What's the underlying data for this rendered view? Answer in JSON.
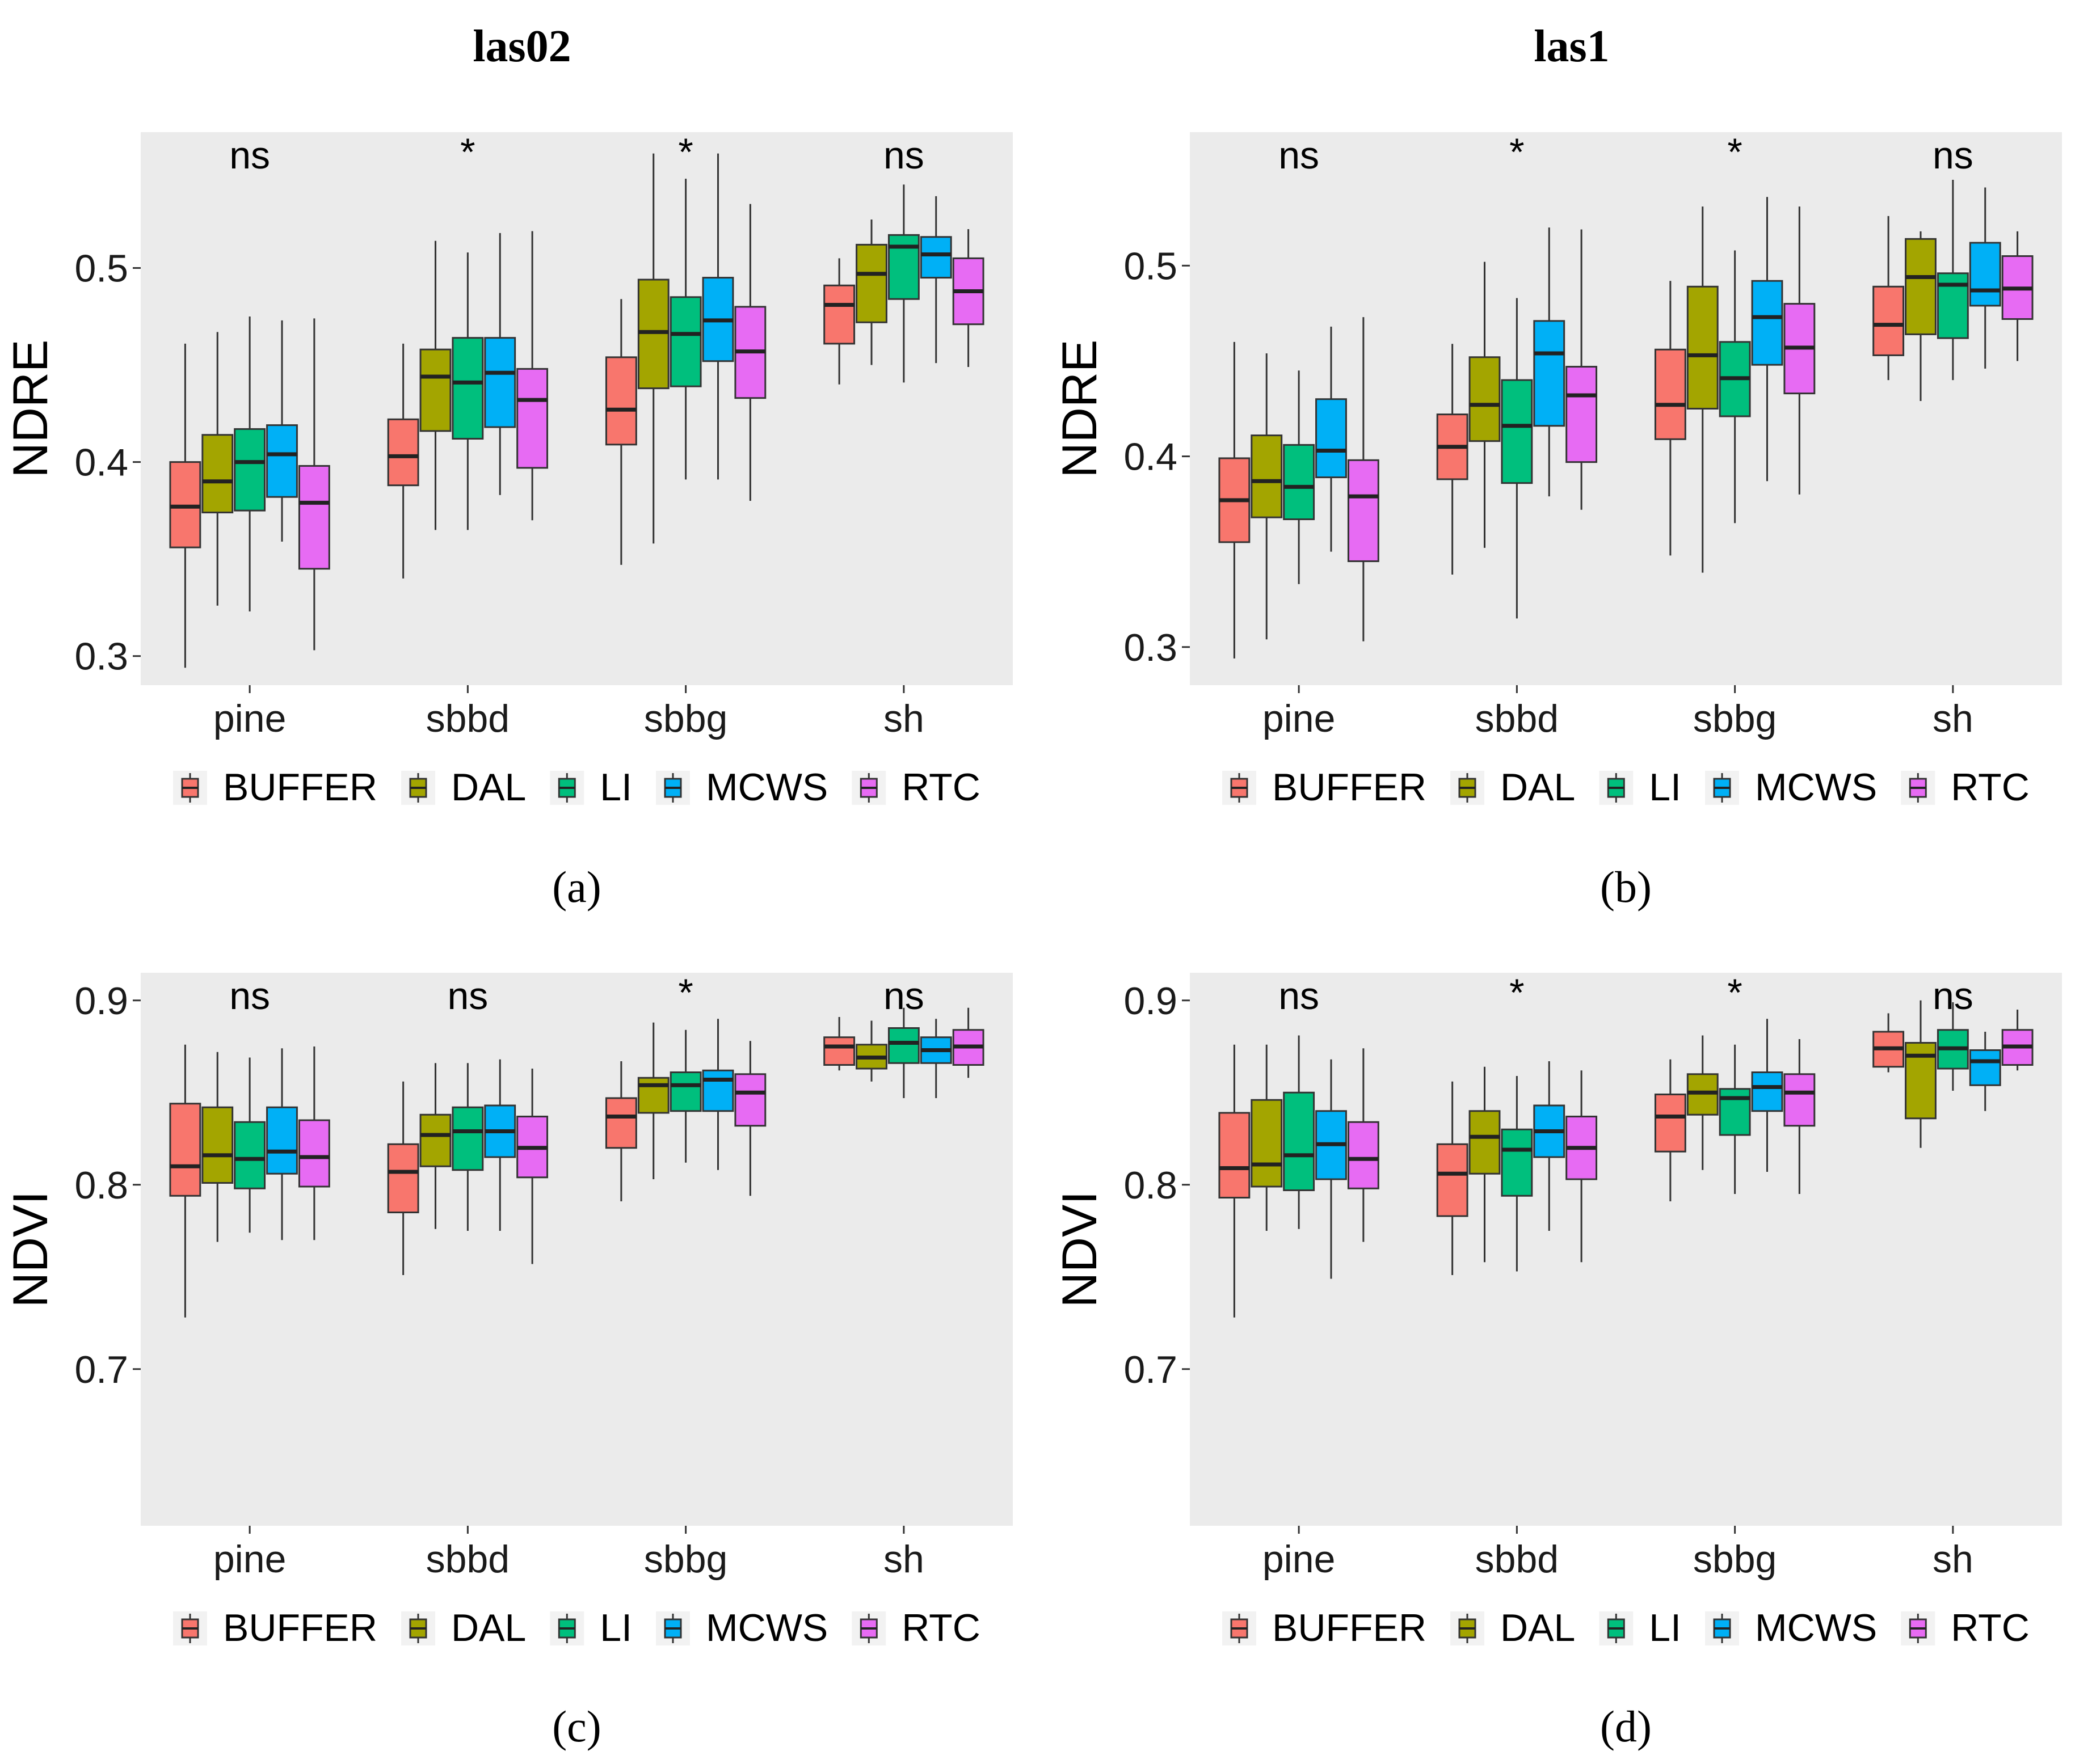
{
  "figure": {
    "column_titles": [
      "las02",
      "las1"
    ]
  },
  "legend": {
    "entries": [
      {
        "name": "BUFFER",
        "color": "#F8766D"
      },
      {
        "name": "DAL",
        "color": "#A3A500"
      },
      {
        "name": "LI",
        "color": "#00BF7D"
      },
      {
        "name": "MCWS",
        "color": "#00B0F6"
      },
      {
        "name": "RTC",
        "color": "#E76BF3"
      }
    ]
  },
  "chart_data": [
    {
      "type": "boxplot",
      "panel_label": "(a)",
      "column_title": "las02",
      "ylabel": "NDRE",
      "ylim": [
        0.285,
        0.57
      ],
      "yticks": [
        "0.3",
        "0.4",
        "0.5"
      ],
      "categories": [
        "pine",
        "sbbd",
        "sbbg",
        "sh"
      ],
      "significance": [
        "ns",
        "*",
        "*",
        "ns"
      ],
      "series": [
        {
          "name": "BUFFER",
          "boxes": [
            [
              0.294,
              0.356,
              0.377,
              0.4,
              0.461
            ],
            [
              0.34,
              0.388,
              0.403,
              0.422,
              0.461
            ],
            [
              0.347,
              0.409,
              0.427,
              0.454,
              0.484
            ],
            [
              0.44,
              0.461,
              0.481,
              0.491,
              0.505
            ]
          ]
        },
        {
          "name": "DAL",
          "boxes": [
            [
              0.326,
              0.374,
              0.39,
              0.414,
              0.467
            ],
            [
              0.365,
              0.416,
              0.444,
              0.458,
              0.514
            ],
            [
              0.358,
              0.438,
              0.467,
              0.494,
              0.559
            ],
            [
              0.45,
              0.472,
              0.497,
              0.512,
              0.525
            ]
          ]
        },
        {
          "name": "LI",
          "boxes": [
            [
              0.323,
              0.375,
              0.4,
              0.417,
              0.475
            ],
            [
              0.365,
              0.412,
              0.441,
              0.464,
              0.508
            ],
            [
              0.391,
              0.439,
              0.466,
              0.485,
              0.546
            ],
            [
              0.441,
              0.484,
              0.511,
              0.517,
              0.543
            ]
          ]
        },
        {
          "name": "MCWS",
          "boxes": [
            [
              0.359,
              0.382,
              0.404,
              0.419,
              0.473
            ],
            [
              0.383,
              0.418,
              0.446,
              0.464,
              0.518
            ],
            [
              0.391,
              0.452,
              0.473,
              0.495,
              0.559
            ],
            [
              0.451,
              0.495,
              0.507,
              0.516,
              0.537
            ]
          ]
        },
        {
          "name": "RTC",
          "boxes": [
            [
              0.303,
              0.345,
              0.379,
              0.398,
              0.474
            ],
            [
              0.37,
              0.397,
              0.432,
              0.448,
              0.519
            ],
            [
              0.38,
              0.433,
              0.457,
              0.48,
              0.533
            ],
            [
              0.449,
              0.471,
              0.488,
              0.505,
              0.52
            ]
          ]
        }
      ]
    },
    {
      "type": "boxplot",
      "panel_label": "(b)",
      "column_title": "las1",
      "ylabel": "NDRE",
      "ylim": [
        0.28,
        0.57
      ],
      "yticks": [
        "0.3",
        "0.4",
        "0.5"
      ],
      "categories": [
        "pine",
        "sbbd",
        "sbbg",
        "sh"
      ],
      "significance": [
        "ns",
        "*",
        "*",
        "ns"
      ],
      "series": [
        {
          "name": "BUFFER",
          "boxes": [
            [
              0.294,
              0.355,
              0.377,
              0.399,
              0.46
            ],
            [
              0.338,
              0.388,
              0.405,
              0.422,
              0.459
            ],
            [
              0.348,
              0.409,
              0.427,
              0.456,
              0.492
            ],
            [
              0.44,
              0.453,
              0.469,
              0.489,
              0.526
            ]
          ]
        },
        {
          "name": "DAL",
          "boxes": [
            [
              0.304,
              0.368,
              0.387,
              0.411,
              0.454
            ],
            [
              0.352,
              0.408,
              0.427,
              0.452,
              0.502
            ],
            [
              0.339,
              0.425,
              0.453,
              0.489,
              0.531
            ],
            [
              0.429,
              0.464,
              0.494,
              0.514,
              0.518
            ]
          ]
        },
        {
          "name": "LI",
          "boxes": [
            [
              0.333,
              0.367,
              0.384,
              0.406,
              0.445
            ],
            [
              0.315,
              0.386,
              0.416,
              0.44,
              0.483
            ],
            [
              0.365,
              0.421,
              0.441,
              0.46,
              0.508
            ],
            [
              0.44,
              0.462,
              0.49,
              0.496,
              0.545
            ]
          ]
        },
        {
          "name": "MCWS",
          "boxes": [
            [
              0.35,
              0.389,
              0.403,
              0.43,
              0.468
            ],
            [
              0.379,
              0.416,
              0.454,
              0.471,
              0.52
            ],
            [
              0.387,
              0.448,
              0.473,
              0.492,
              0.536
            ],
            [
              0.446,
              0.479,
              0.487,
              0.512,
              0.541
            ]
          ]
        },
        {
          "name": "RTC",
          "boxes": [
            [
              0.303,
              0.345,
              0.379,
              0.398,
              0.473
            ],
            [
              0.372,
              0.397,
              0.432,
              0.447,
              0.519
            ],
            [
              0.38,
              0.433,
              0.457,
              0.48,
              0.531
            ],
            [
              0.45,
              0.472,
              0.488,
              0.505,
              0.518
            ]
          ]
        }
      ]
    },
    {
      "type": "boxplot",
      "panel_label": "(c)",
      "column_title": "las02",
      "ylabel": "NDVI",
      "ylim": [
        0.615,
        0.915
      ],
      "yticks": [
        "0.7",
        "0.8",
        "0.9"
      ],
      "categories": [
        "pine",
        "sbbd",
        "sbbg",
        "sh"
      ],
      "significance": [
        "ns",
        "ns",
        "*",
        "ns"
      ],
      "series": [
        {
          "name": "BUFFER",
          "boxes": [
            [
              0.728,
              0.794,
              0.81,
              0.844,
              0.876
            ],
            [
              0.751,
              0.785,
              0.807,
              0.822,
              0.856
            ],
            [
              0.791,
              0.82,
              0.837,
              0.847,
              0.867
            ],
            [
              0.862,
              0.865,
              0.875,
              0.88,
              0.891
            ]
          ]
        },
        {
          "name": "DAL",
          "boxes": [
            [
              0.769,
              0.801,
              0.816,
              0.842,
              0.872
            ],
            [
              0.776,
              0.81,
              0.827,
              0.838,
              0.866
            ],
            [
              0.803,
              0.839,
              0.854,
              0.858,
              0.888
            ],
            [
              0.856,
              0.863,
              0.869,
              0.876,
              0.889
            ]
          ]
        },
        {
          "name": "LI",
          "boxes": [
            [
              0.774,
              0.798,
              0.814,
              0.834,
              0.869
            ],
            [
              0.775,
              0.808,
              0.829,
              0.842,
              0.866
            ],
            [
              0.812,
              0.84,
              0.854,
              0.861,
              0.884
            ],
            [
              0.847,
              0.866,
              0.877,
              0.885,
              0.896
            ]
          ]
        },
        {
          "name": "MCWS",
          "boxes": [
            [
              0.77,
              0.806,
              0.818,
              0.842,
              0.874
            ],
            [
              0.775,
              0.815,
              0.829,
              0.843,
              0.868
            ],
            [
              0.808,
              0.84,
              0.857,
              0.862,
              0.89
            ],
            [
              0.847,
              0.866,
              0.873,
              0.88,
              0.89
            ]
          ]
        },
        {
          "name": "RTC",
          "boxes": [
            [
              0.77,
              0.799,
              0.815,
              0.835,
              0.875
            ],
            [
              0.757,
              0.804,
              0.82,
              0.837,
              0.863
            ],
            [
              0.794,
              0.832,
              0.85,
              0.86,
              0.878
            ],
            [
              0.858,
              0.865,
              0.875,
              0.884,
              0.896
            ]
          ]
        }
      ]
    },
    {
      "type": "boxplot",
      "panel_label": "(d)",
      "column_title": "las1",
      "ylabel": "NDVI",
      "ylim": [
        0.615,
        0.915
      ],
      "yticks": [
        "0.7",
        "0.8",
        "0.9"
      ],
      "categories": [
        "pine",
        "sbbd",
        "sbbg",
        "sh"
      ],
      "significance": [
        "ns",
        "*",
        "*",
        "ns"
      ],
      "series": [
        {
          "name": "BUFFER",
          "boxes": [
            [
              0.728,
              0.793,
              0.809,
              0.839,
              0.876
            ],
            [
              0.751,
              0.783,
              0.806,
              0.822,
              0.856
            ],
            [
              0.791,
              0.818,
              0.837,
              0.849,
              0.868
            ],
            [
              0.861,
              0.864,
              0.874,
              0.883,
              0.893
            ]
          ]
        },
        {
          "name": "DAL",
          "boxes": [
            [
              0.775,
              0.799,
              0.811,
              0.846,
              0.876
            ],
            [
              0.758,
              0.806,
              0.826,
              0.84,
              0.864
            ],
            [
              0.808,
              0.838,
              0.85,
              0.86,
              0.881
            ],
            [
              0.82,
              0.836,
              0.87,
              0.877,
              0.9
            ]
          ]
        },
        {
          "name": "LI",
          "boxes": [
            [
              0.776,
              0.797,
              0.816,
              0.85,
              0.881
            ],
            [
              0.753,
              0.794,
              0.819,
              0.83,
              0.859
            ],
            [
              0.795,
              0.827,
              0.847,
              0.852,
              0.876
            ],
            [
              0.851,
              0.863,
              0.874,
              0.884,
              0.899
            ]
          ]
        },
        {
          "name": "MCWS",
          "boxes": [
            [
              0.749,
              0.803,
              0.822,
              0.84,
              0.868
            ],
            [
              0.775,
              0.815,
              0.829,
              0.843,
              0.867
            ],
            [
              0.807,
              0.84,
              0.853,
              0.861,
              0.89
            ],
            [
              0.84,
              0.854,
              0.867,
              0.873,
              0.883
            ]
          ]
        },
        {
          "name": "RTC",
          "boxes": [
            [
              0.769,
              0.798,
              0.814,
              0.834,
              0.874
            ],
            [
              0.758,
              0.803,
              0.82,
              0.837,
              0.862
            ],
            [
              0.795,
              0.832,
              0.85,
              0.86,
              0.879
            ],
            [
              0.862,
              0.865,
              0.875,
              0.884,
              0.895
            ]
          ]
        }
      ]
    }
  ]
}
